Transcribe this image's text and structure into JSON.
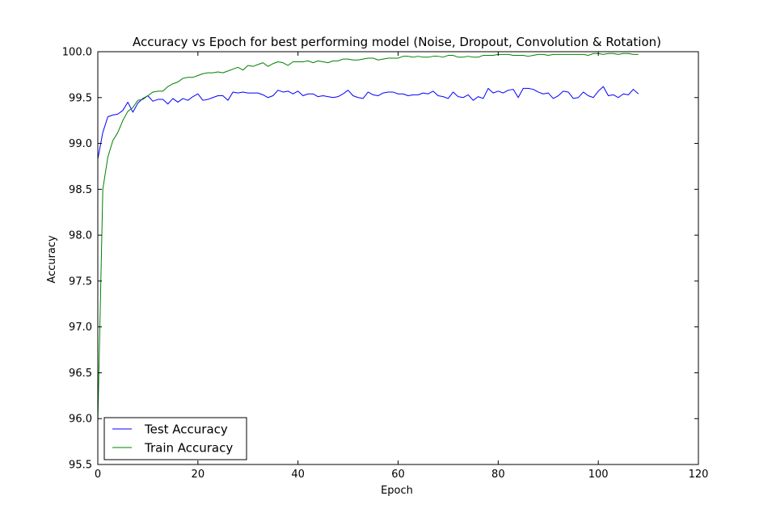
{
  "chart_data": {
    "type": "line",
    "title": "Accuracy vs Epoch for best performing model (Noise, Dropout, Convolution & Rotation)",
    "xlabel": "Epoch",
    "ylabel": "Accuracy",
    "xlim": [
      0,
      120
    ],
    "ylim": [
      95.5,
      100.0
    ],
    "xticks": [
      0,
      20,
      40,
      60,
      80,
      100,
      120
    ],
    "yticks": [
      95.5,
      96.0,
      96.5,
      97.0,
      97.5,
      98.0,
      98.5,
      99.0,
      99.5,
      100.0
    ],
    "grid": false,
    "legend_position": "lower-left",
    "series": [
      {
        "name": "Test Accuracy",
        "color": "#0000ff",
        "values": [
          98.83,
          99.12,
          99.29,
          99.31,
          99.32,
          99.36,
          99.45,
          99.34,
          99.44,
          99.49,
          99.52,
          99.46,
          99.48,
          99.48,
          99.43,
          99.49,
          99.45,
          99.49,
          99.47,
          99.51,
          99.54,
          99.47,
          99.48,
          99.5,
          99.52,
          99.52,
          99.47,
          99.56,
          99.55,
          99.56,
          99.55,
          99.55,
          99.55,
          99.53,
          99.5,
          99.52,
          99.58,
          99.56,
          99.57,
          99.54,
          99.57,
          99.52,
          99.54,
          99.54,
          99.51,
          99.52,
          99.51,
          99.5,
          99.51,
          99.54,
          99.58,
          99.52,
          99.5,
          99.49,
          99.56,
          99.53,
          99.52,
          99.55,
          99.56,
          99.56,
          99.54,
          99.54,
          99.52,
          99.53,
          99.53,
          99.55,
          99.54,
          99.57,
          99.52,
          99.51,
          99.49,
          99.56,
          99.51,
          99.5,
          99.53,
          99.47,
          99.51,
          99.49,
          99.6,
          99.55,
          99.57,
          99.55,
          99.58,
          99.59,
          99.5,
          99.6,
          99.6,
          99.59,
          99.56,
          99.54,
          99.55,
          99.49,
          99.52,
          99.57,
          99.56,
          99.49,
          99.5,
          99.56,
          99.52,
          99.5,
          99.57,
          99.62,
          99.52,
          99.53,
          99.5,
          99.54,
          99.53,
          99.59,
          99.54
        ]
      },
      {
        "name": "Train Accuracy",
        "color": "#008000",
        "values": [
          95.95,
          98.5,
          98.85,
          99.03,
          99.12,
          99.25,
          99.35,
          99.39,
          99.47,
          99.48,
          99.52,
          99.56,
          99.57,
          99.57,
          99.62,
          99.65,
          99.67,
          99.71,
          99.72,
          99.72,
          99.74,
          99.76,
          99.77,
          99.77,
          99.78,
          99.77,
          99.79,
          99.81,
          99.83,
          99.8,
          99.85,
          99.84,
          99.86,
          99.88,
          99.84,
          99.87,
          99.89,
          99.88,
          99.85,
          99.89,
          99.89,
          99.89,
          99.9,
          99.88,
          99.9,
          99.89,
          99.88,
          99.9,
          99.9,
          99.92,
          99.92,
          99.91,
          99.91,
          99.92,
          99.93,
          99.93,
          99.91,
          99.92,
          99.93,
          99.93,
          99.93,
          99.95,
          99.95,
          99.94,
          99.95,
          99.94,
          99.94,
          99.95,
          99.95,
          99.94,
          99.96,
          99.96,
          99.94,
          99.94,
          99.95,
          99.94,
          99.94,
          99.96,
          99.96,
          99.96,
          99.97,
          99.97,
          99.97,
          99.96,
          99.96,
          99.96,
          99.95,
          99.96,
          99.97,
          99.97,
          99.96,
          99.97,
          99.97,
          99.97,
          99.97,
          99.97,
          99.97,
          99.97,
          99.96,
          99.98,
          99.98,
          99.97,
          99.98,
          99.98,
          99.97,
          99.98,
          99.98,
          99.97,
          99.97
        ]
      }
    ]
  }
}
